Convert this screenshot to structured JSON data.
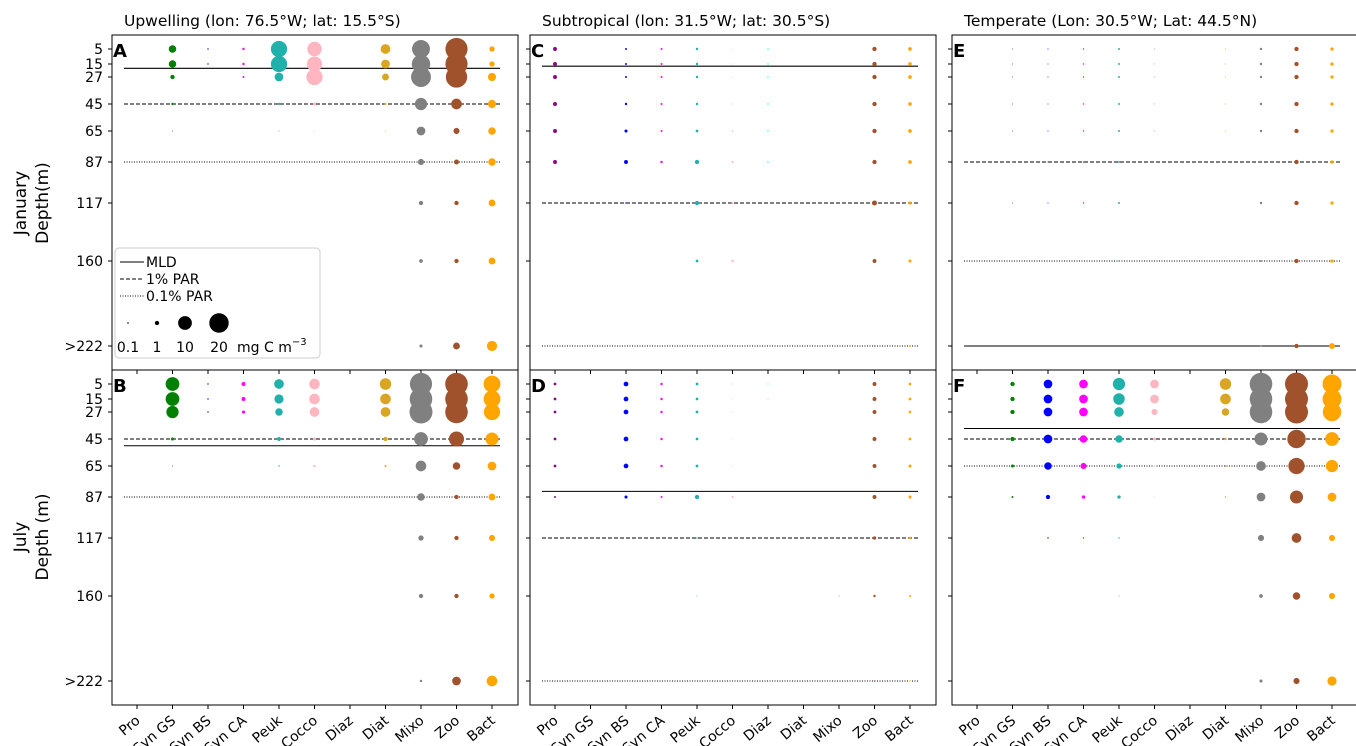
{
  "chart_data": {
    "type": "scatter",
    "categories": [
      "Pro",
      "Syn GS",
      "Syn BS",
      "Syn CA",
      "Peuk",
      "Cocco",
      "Diaz",
      "Diat",
      "Mixo",
      "Zoo",
      "Bact"
    ],
    "depth_labels": [
      "5",
      "15",
      "27",
      "45",
      "65",
      "87",
      "117",
      "160",
      ">222"
    ],
    "ylabel_prefix": [
      "January",
      "July"
    ],
    "ylabel": [
      "Depth(m)",
      "Depth (m)"
    ],
    "colors": {
      "Pro": "#8b008b",
      "Syn GS": "#008000",
      "Syn BS": "#0000ff",
      "Syn CA": "#ff00ff",
      "Peuk": "#20b2aa",
      "Cocco": "#ffb6c1",
      "Diaz": "#00ffff",
      "Diat": "#daa520",
      "Mixo": "#808080",
      "Zoo": "#a0522d",
      "Bact": "#ffa500"
    },
    "legend": {
      "lines": [
        {
          "label": "MLD",
          "style": "solid"
        },
        {
          "label": "1% PAR",
          "style": "dashed"
        },
        {
          "label": "0.1% PAR",
          "style": "dotted"
        }
      ],
      "sizes": [
        0.1,
        1,
        10,
        20
      ],
      "size_labels": [
        "0.1",
        "1",
        "10",
        "20"
      ],
      "unit": "mg C m",
      "unit_exp": "−3"
    },
    "panels": [
      {
        "letter": "A",
        "title": "Upwelling (lon: 76.5°W; lat: 15.5°S)",
        "mld": 19,
        "par1": 45,
        "par01": 87,
        "values": {
          "Pro": [
            0,
            0,
            0,
            0,
            0,
            0,
            0,
            0,
            0
          ],
          "Syn GS": [
            3,
            3,
            1,
            0.3,
            0.05,
            0,
            0,
            0,
            0
          ],
          "Syn BS": [
            0.1,
            0.1,
            0,
            0,
            0,
            0,
            0,
            0,
            0
          ],
          "Syn CA": [
            0.3,
            0.3,
            0.2,
            0,
            0,
            0,
            0,
            0,
            0
          ],
          "Peuk": [
            14,
            14,
            4,
            0.3,
            0.05,
            0,
            0,
            0,
            0
          ],
          "Cocco": [
            11,
            12,
            14,
            0.5,
            0.05,
            0,
            0,
            0,
            0
          ],
          "Diaz": [
            0,
            0,
            0,
            0,
            0,
            0,
            0,
            0,
            0
          ],
          "Diat": [
            5,
            4,
            2.5,
            0.2,
            0.05,
            0,
            0,
            0,
            0
          ],
          "Mixo": [
            17,
            18,
            21,
            8,
            4,
            2,
            1,
            0.7,
            0.5
          ],
          "Zoo": [
            26,
            26,
            24,
            6,
            2,
            1.3,
            1,
            1,
            2.5
          ],
          "Bact": [
            1.5,
            1.5,
            3.5,
            3.5,
            3,
            3,
            2.5,
            2.5,
            5.5
          ]
        }
      },
      {
        "letter": "B",
        "title": "",
        "mld": 50,
        "par1": 45,
        "par01": 87,
        "values": {
          "Pro": [
            0,
            0,
            0,
            0,
            0,
            0,
            0,
            0,
            0
          ],
          "Syn GS": [
            10,
            10,
            8,
            0.5,
            0.05,
            0,
            0,
            0,
            0
          ],
          "Syn BS": [
            0.1,
            0.1,
            0.1,
            0,
            0,
            0,
            0,
            0,
            0
          ],
          "Syn CA": [
            0.8,
            0.8,
            0.5,
            0,
            0,
            0,
            0,
            0,
            0
          ],
          "Peuk": [
            5,
            4.5,
            3,
            0.8,
            0.1,
            0,
            0,
            0,
            0
          ],
          "Cocco": [
            6,
            6,
            5,
            0.5,
            0.3,
            0,
            0,
            0,
            0
          ],
          "Diaz": [
            0,
            0,
            0,
            0,
            0,
            0,
            0,
            0,
            0
          ],
          "Diat": [
            7,
            6,
            5,
            1,
            0.2,
            0,
            0,
            0,
            0
          ],
          "Mixo": [
            26,
            27,
            28,
            10,
            6,
            3,
            1.5,
            1,
            0.3
          ],
          "Zoo": [
            27,
            27,
            27,
            12,
            3,
            1,
            1,
            1,
            4
          ],
          "Bact": [
            15,
            15,
            14,
            9,
            4,
            2.5,
            2,
            1.5,
            6
          ]
        }
      },
      {
        "letter": "C",
        "title": "Subtropical (lon: 31.5°W; lat: 30.5°S)",
        "mld": 17,
        "par1": 117,
        "par01": 222,
        "values": {
          "Pro": [
            0.8,
            0.8,
            0.8,
            0.8,
            0.8,
            0.8,
            0,
            0,
            0
          ],
          "Syn GS": [
            0,
            0,
            0,
            0,
            0,
            0,
            0,
            0,
            0
          ],
          "Syn BS": [
            0.2,
            0.2,
            0.2,
            0.3,
            0.5,
            0.8,
            0.1,
            0,
            0
          ],
          "Syn CA": [
            0.2,
            0.2,
            0.2,
            0.2,
            0.2,
            0.3,
            0,
            0,
            0
          ],
          "Peuk": [
            0.3,
            0.3,
            0.3,
            0.3,
            0.4,
            1,
            1,
            0.4,
            0
          ],
          "Cocco": [
            0.05,
            0.05,
            0.05,
            0.05,
            0.1,
            0.2,
            0.2,
            0.3,
            0
          ],
          "Diaz": [
            0.1,
            0.1,
            0.1,
            0.1,
            0.1,
            0.1,
            0,
            0,
            0
          ],
          "Diat": [
            0,
            0,
            0,
            0,
            0,
            0,
            0,
            0,
            0
          ],
          "Mixo": [
            0,
            0,
            0,
            0,
            0,
            0,
            0,
            0,
            0
          ],
          "Zoo": [
            1,
            1,
            1,
            1,
            1,
            1,
            1.3,
            0.8,
            0.1
          ],
          "Bact": [
            0.7,
            0.7,
            0.7,
            0.7,
            0.7,
            0.7,
            0.5,
            0.5,
            0.2
          ]
        }
      },
      {
        "letter": "D",
        "title": "",
        "mld": 83,
        "par1": 117,
        "par01": 222,
        "values": {
          "Pro": [
            0.4,
            0.4,
            0.4,
            0.4,
            0.4,
            0.2,
            0,
            0,
            0
          ],
          "Syn GS": [
            0,
            0,
            0,
            0,
            0,
            0,
            0,
            0,
            0
          ],
          "Syn BS": [
            1.2,
            1.2,
            1.2,
            1.2,
            1.2,
            0.5,
            0,
            0,
            0
          ],
          "Syn CA": [
            0.3,
            0.3,
            0.3,
            0.3,
            0.3,
            0.2,
            0,
            0,
            0
          ],
          "Peuk": [
            0.4,
            0.4,
            0.4,
            0.4,
            0.4,
            1,
            0.1,
            0.05,
            0
          ],
          "Cocco": [
            0.05,
            0.05,
            0.05,
            0.05,
            0.05,
            0.2,
            0,
            0,
            0
          ],
          "Diaz": [
            0.05,
            0.05,
            0,
            0,
            0,
            0,
            0,
            0,
            0
          ],
          "Diat": [
            0,
            0,
            0,
            0,
            0,
            0,
            0,
            0,
            0
          ],
          "Mixo": [
            0,
            0,
            0,
            0,
            0,
            0,
            0,
            0.05,
            0
          ],
          "Zoo": [
            0.8,
            0.8,
            0.8,
            0.8,
            0.8,
            0.8,
            0.6,
            0.3,
            0.1
          ],
          "Bact": [
            0.4,
            0.4,
            0.4,
            0.4,
            0.5,
            0.5,
            0.3,
            0.2,
            0.1
          ]
        }
      },
      {
        "letter": "E",
        "title": "Temperate (Lon: 30.5°W; Lat: 44.5°N)",
        "mld": 222,
        "par1": 87,
        "par01": 160,
        "values": {
          "Pro": [
            0,
            0,
            0,
            0,
            0,
            0,
            0,
            0,
            0
          ],
          "Syn GS": [
            0.05,
            0.05,
            0.05,
            0.05,
            0.05,
            0.05,
            0.05,
            0,
            0
          ],
          "Syn BS": [
            0.05,
            0.05,
            0.05,
            0.05,
            0.05,
            0.05,
            0.05,
            0,
            0
          ],
          "Syn CA": [
            0.1,
            0.1,
            0.1,
            0.1,
            0.1,
            0.1,
            0.1,
            0,
            0
          ],
          "Peuk": [
            0.2,
            0.2,
            0.2,
            0.2,
            0.2,
            0.2,
            0.2,
            0.1,
            0
          ],
          "Cocco": [
            0.1,
            0.1,
            0.1,
            0.1,
            0.1,
            0,
            0,
            0,
            0
          ],
          "Diaz": [
            0,
            0,
            0,
            0,
            0,
            0,
            0,
            0,
            0
          ],
          "Diat": [
            0.05,
            0.05,
            0.05,
            0.05,
            0.05,
            0,
            0,
            0,
            0
          ],
          "Mixo": [
            0.3,
            0.3,
            0.3,
            0.3,
            0.3,
            0.3,
            0.3,
            0.2,
            0.1
          ],
          "Zoo": [
            1,
            1,
            1,
            1,
            1,
            1,
            1,
            1,
            1
          ],
          "Bact": [
            0.6,
            0.6,
            0.6,
            0.6,
            0.6,
            0.6,
            0.6,
            0.6,
            1.8
          ]
        }
      },
      {
        "letter": "F",
        "title": "",
        "mld": 38,
        "par1": 45,
        "par01": 65,
        "values": {
          "Pro": [
            0,
            0,
            0,
            0,
            0,
            0,
            0,
            0,
            0
          ],
          "Syn GS": [
            1,
            1,
            1,
            1,
            0.5,
            0.2,
            0,
            0,
            0
          ],
          "Syn BS": [
            4,
            4,
            4,
            4,
            3,
            1,
            0.1,
            0,
            0
          ],
          "Syn CA": [
            4,
            4,
            4,
            3,
            2,
            0.6,
            0.1,
            0,
            0
          ],
          "Peuk": [
            8,
            7,
            5,
            3,
            1.5,
            0.6,
            0.1,
            0.05,
            0
          ],
          "Cocco": [
            4,
            4,
            2,
            0.5,
            0.1,
            0.05,
            0,
            0,
            0
          ],
          "Diaz": [
            0,
            0,
            0,
            0,
            0,
            0,
            0,
            0,
            0
          ],
          "Diat": [
            7,
            6,
            3,
            0.3,
            0.1,
            0.1,
            0,
            0,
            0
          ],
          "Mixo": [
            27,
            27,
            27,
            9,
            5,
            4,
            2,
            0.7,
            0.5
          ],
          "Zoo": [
            28,
            28,
            28,
            18,
            14,
            9,
            5,
            3,
            2
          ],
          "Bact": [
            19,
            19,
            18,
            10,
            8,
            4,
            2,
            2,
            4.5
          ]
        }
      }
    ]
  }
}
